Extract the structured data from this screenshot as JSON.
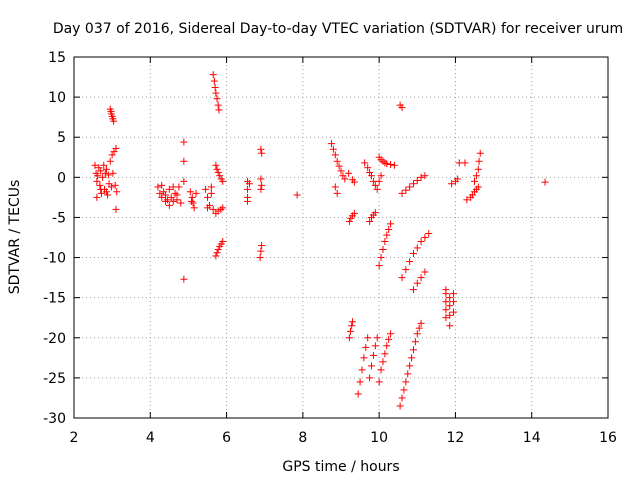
{
  "chart_data": {
    "type": "scatter",
    "title": "Day 037 of 2016, Sidereal Day-to-day VTEC variation (SDTVAR) for receiver urum",
    "xlabel": "GPS time / hours",
    "ylabel": "SDTVAR / TECUs",
    "xlim": [
      2,
      16
    ],
    "ylim": [
      -30,
      15
    ],
    "xticks": [
      "2",
      "4",
      "6",
      "8",
      "10",
      "12",
      "14",
      "16"
    ],
    "yticks": [
      "-30",
      "-25",
      "-20",
      "-15",
      "-10",
      "-5",
      "0",
      "5",
      "10",
      "15"
    ],
    "grid": true,
    "marker": "+",
    "color": "#ff0000",
    "series": [
      {
        "points": [
          [
            2.55,
            1.5
          ],
          [
            2.58,
            0.5
          ],
          [
            2.6,
            -0.5
          ],
          [
            2.62,
            0.2
          ],
          [
            2.65,
            1.2
          ],
          [
            2.68,
            -1.0
          ],
          [
            2.7,
            0.8
          ],
          [
            2.72,
            -2.0
          ],
          [
            2.75,
            0.0
          ],
          [
            2.78,
            1.5
          ],
          [
            2.8,
            -1.5
          ],
          [
            2.82,
            0.5
          ],
          [
            2.85,
            1.0
          ],
          [
            2.88,
            -2.2
          ],
          [
            2.9,
            0.3
          ],
          [
            2.92,
            -0.8
          ],
          [
            2.95,
            2.0
          ],
          [
            2.98,
            -1.2
          ],
          [
            3.0,
            2.8
          ],
          [
            3.02,
            0.5
          ],
          [
            3.05,
            3.2
          ],
          [
            3.08,
            -1.0
          ],
          [
            3.1,
            3.6
          ],
          [
            3.12,
            -1.8
          ],
          [
            3.1,
            -4.0
          ],
          [
            2.6,
            -2.5
          ],
          [
            2.7,
            -1.5
          ],
          [
            2.85,
            -1.8
          ],
          [
            2.95,
            8.5
          ],
          [
            2.97,
            8.2
          ],
          [
            2.98,
            7.9
          ],
          [
            3.0,
            7.6
          ],
          [
            3.02,
            7.3
          ],
          [
            3.04,
            7.0
          ],
          [
            4.2,
            -1.2
          ],
          [
            4.25,
            -2.0
          ],
          [
            4.3,
            -2.5
          ],
          [
            4.35,
            -1.8
          ],
          [
            4.4,
            -2.2
          ],
          [
            4.45,
            -2.8
          ],
          [
            4.5,
            -1.5
          ],
          [
            4.55,
            -2.5
          ],
          [
            4.6,
            -3.0
          ],
          [
            4.65,
            -2.0
          ],
          [
            4.7,
            -2.8
          ],
          [
            4.75,
            -1.2
          ],
          [
            4.8,
            -3.2
          ],
          [
            4.3,
            -1.0
          ],
          [
            4.5,
            -3.5
          ],
          [
            4.4,
            -3.0
          ],
          [
            4.6,
            -1.2
          ],
          [
            4.7,
            -2.2
          ],
          [
            4.88,
            4.4
          ],
          [
            4.88,
            2.0
          ],
          [
            4.88,
            -0.5
          ],
          [
            4.88,
            -12.7
          ],
          [
            5.05,
            -1.8
          ],
          [
            5.1,
            -2.5
          ],
          [
            5.12,
            -3.2
          ],
          [
            5.15,
            -3.8
          ],
          [
            5.2,
            -2.0
          ],
          [
            5.08,
            -3.0
          ],
          [
            5.45,
            -1.5
          ],
          [
            5.5,
            -2.5
          ],
          [
            5.55,
            -3.5
          ],
          [
            5.6,
            -2.0
          ],
          [
            5.65,
            -4.0
          ],
          [
            5.5,
            -3.8
          ],
          [
            5.6,
            -1.2
          ],
          [
            5.65,
            12.8
          ],
          [
            5.68,
            12.0
          ],
          [
            5.7,
            11.2
          ],
          [
            5.72,
            10.5
          ],
          [
            5.75,
            9.8
          ],
          [
            5.78,
            9.0
          ],
          [
            5.8,
            8.4
          ],
          [
            5.72,
            1.5
          ],
          [
            5.75,
            1.0
          ],
          [
            5.78,
            0.6
          ],
          [
            5.82,
            0.2
          ],
          [
            5.86,
            -0.2
          ],
          [
            5.9,
            -0.5
          ],
          [
            5.72,
            -4.5
          ],
          [
            5.78,
            -4.2
          ],
          [
            5.85,
            -4.0
          ],
          [
            5.9,
            -3.8
          ],
          [
            5.72,
            -9.8
          ],
          [
            5.75,
            -9.4
          ],
          [
            5.78,
            -9.0
          ],
          [
            5.82,
            -8.6
          ],
          [
            5.86,
            -8.3
          ],
          [
            5.9,
            -8.0
          ],
          [
            6.55,
            -0.5
          ],
          [
            6.55,
            -1.5
          ],
          [
            6.55,
            -2.5
          ],
          [
            6.55,
            -3.0
          ],
          [
            6.6,
            -0.8
          ],
          [
            6.9,
            3.5
          ],
          [
            6.92,
            3.0
          ],
          [
            6.9,
            -0.2
          ],
          [
            6.92,
            -1.0
          ],
          [
            6.9,
            -1.5
          ],
          [
            6.92,
            -8.5
          ],
          [
            6.9,
            -9.2
          ],
          [
            6.88,
            -10.0
          ],
          [
            7.85,
            -2.2
          ],
          [
            8.75,
            4.2
          ],
          [
            8.8,
            3.5
          ],
          [
            8.85,
            2.8
          ],
          [
            8.9,
            2.0
          ],
          [
            8.95,
            1.4
          ],
          [
            9.0,
            0.8
          ],
          [
            9.05,
            0.2
          ],
          [
            9.1,
            -0.2
          ],
          [
            8.85,
            -1.2
          ],
          [
            8.9,
            -2.0
          ],
          [
            9.2,
            0.5
          ],
          [
            9.3,
            -0.3
          ],
          [
            9.35,
            -0.6
          ],
          [
            9.22,
            -5.5
          ],
          [
            9.26,
            -5.1
          ],
          [
            9.3,
            -4.8
          ],
          [
            9.35,
            -4.5
          ],
          [
            9.22,
            -20.0
          ],
          [
            9.25,
            -19.2
          ],
          [
            9.28,
            -18.5
          ],
          [
            9.3,
            -18.0
          ],
          [
            9.45,
            -27.0
          ],
          [
            9.5,
            -25.5
          ],
          [
            9.55,
            -24.0
          ],
          [
            9.6,
            -22.5
          ],
          [
            9.65,
            -21.2
          ],
          [
            9.7,
            -20.0
          ],
          [
            9.62,
            1.8
          ],
          [
            9.7,
            1.2
          ],
          [
            9.75,
            0.6
          ],
          [
            9.8,
            0.2
          ],
          [
            9.85,
            -0.5
          ],
          [
            9.9,
            -1.0
          ],
          [
            9.95,
            -1.5
          ],
          [
            10.0,
            -0.5
          ],
          [
            10.05,
            0.2
          ],
          [
            9.75,
            -25.0
          ],
          [
            9.8,
            -23.5
          ],
          [
            9.85,
            -22.2
          ],
          [
            9.9,
            -21.0
          ],
          [
            9.95,
            -20.0
          ],
          [
            9.75,
            -5.5
          ],
          [
            9.8,
            -5.0
          ],
          [
            9.85,
            -4.7
          ],
          [
            9.9,
            -4.4
          ],
          [
            10.0,
            -25.5
          ],
          [
            10.05,
            -24.0
          ],
          [
            10.1,
            -23.0
          ],
          [
            10.15,
            -22.0
          ],
          [
            10.2,
            -21.0
          ],
          [
            10.25,
            -20.2
          ],
          [
            10.3,
            -19.5
          ],
          [
            10.0,
            -11.0
          ],
          [
            10.05,
            -10.0
          ],
          [
            10.1,
            -9.0
          ],
          [
            10.15,
            -8.0
          ],
          [
            10.2,
            -7.2
          ],
          [
            10.25,
            -6.5
          ],
          [
            10.3,
            -5.8
          ],
          [
            10.0,
            2.5
          ],
          [
            10.05,
            2.2
          ],
          [
            10.1,
            2.0
          ],
          [
            10.15,
            1.8
          ],
          [
            10.2,
            1.7
          ],
          [
            10.3,
            1.6
          ],
          [
            10.4,
            1.5
          ],
          [
            10.55,
            9.0
          ],
          [
            10.6,
            8.7
          ],
          [
            10.55,
            -28.5
          ],
          [
            10.6,
            -27.5
          ],
          [
            10.65,
            -26.5
          ],
          [
            10.7,
            -25.5
          ],
          [
            10.75,
            -24.5
          ],
          [
            10.8,
            -23.5
          ],
          [
            10.85,
            -22.5
          ],
          [
            10.9,
            -21.5
          ],
          [
            10.95,
            -20.5
          ],
          [
            11.0,
            -19.5
          ],
          [
            11.05,
            -18.8
          ],
          [
            11.1,
            -18.2
          ],
          [
            10.6,
            -12.5
          ],
          [
            10.7,
            -11.5
          ],
          [
            10.8,
            -10.5
          ],
          [
            10.9,
            -9.5
          ],
          [
            11.0,
            -8.8
          ],
          [
            11.1,
            -8.0
          ],
          [
            11.2,
            -7.5
          ],
          [
            11.3,
            -7.0
          ],
          [
            10.6,
            -2.0
          ],
          [
            10.7,
            -1.6
          ],
          [
            10.8,
            -1.2
          ],
          [
            10.9,
            -0.8
          ],
          [
            11.0,
            -0.4
          ],
          [
            11.1,
            0.0
          ],
          [
            11.2,
            0.2
          ],
          [
            10.9,
            -14.0
          ],
          [
            11.0,
            -13.2
          ],
          [
            11.1,
            -12.5
          ],
          [
            11.2,
            -11.8
          ],
          [
            11.75,
            -17.5
          ],
          [
            11.75,
            -16.5
          ],
          [
            11.75,
            -15.5
          ],
          [
            11.75,
            -14.5
          ],
          [
            11.75,
            -14.0
          ],
          [
            11.85,
            -18.5
          ],
          [
            11.85,
            -17.2
          ],
          [
            11.85,
            -16.0
          ],
          [
            11.85,
            -15.0
          ],
          [
            11.95,
            -16.8
          ],
          [
            11.95,
            -15.5
          ],
          [
            11.95,
            -14.5
          ],
          [
            11.9,
            -0.8
          ],
          [
            12.0,
            -0.5
          ],
          [
            12.05,
            -0.2
          ],
          [
            12.1,
            1.8
          ],
          [
            12.25,
            1.8
          ],
          [
            12.3,
            -2.8
          ],
          [
            12.4,
            -2.5
          ],
          [
            12.45,
            -2.2
          ],
          [
            12.5,
            -1.8
          ],
          [
            12.55,
            -1.5
          ],
          [
            12.6,
            -1.2
          ],
          [
            12.5,
            -0.5
          ],
          [
            12.55,
            0.2
          ],
          [
            12.6,
            1.0
          ],
          [
            12.62,
            2.0
          ],
          [
            12.65,
            3.0
          ],
          [
            14.35,
            -0.6
          ]
        ]
      }
    ]
  }
}
